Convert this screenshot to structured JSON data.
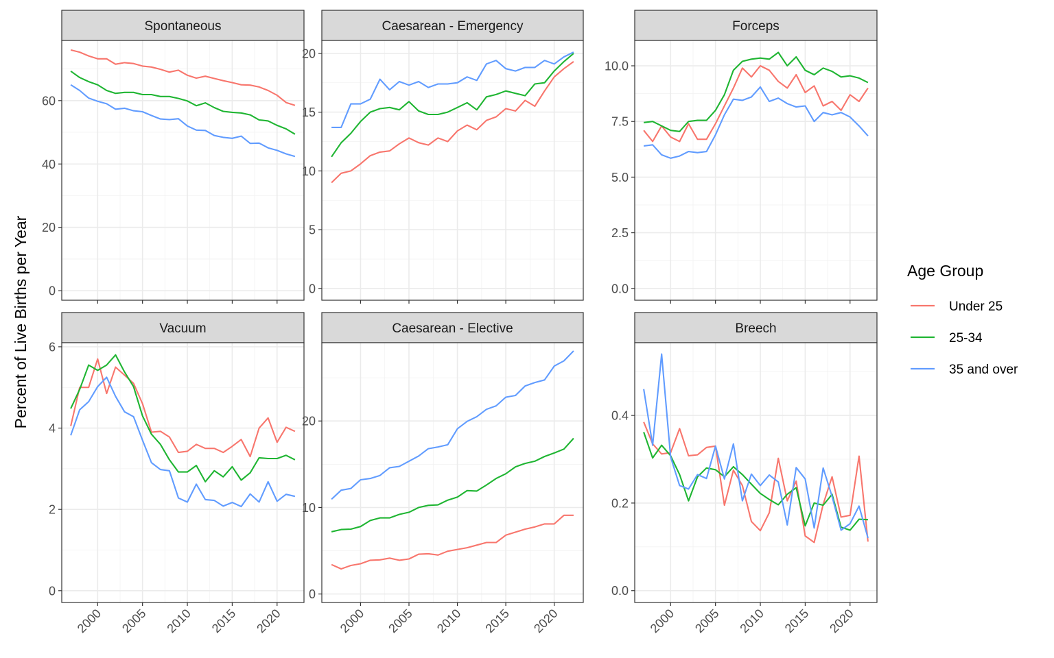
{
  "figure": {
    "ylabel": "Percent of Live Births per Year",
    "legend_title": "Age Group",
    "legend_placement": "right",
    "x_tick_labels": [
      "2000",
      "2005",
      "2010",
      "2015",
      "2020"
    ],
    "colors": {
      "Under 25": "#F8766D",
      "25-34": "#1FB532",
      "35 and over": "#619CFF"
    }
  },
  "legend": {
    "title": "Age Group",
    "items": [
      {
        "name": "Under 25",
        "color": "#F8766D"
      },
      {
        "name": "25-34",
        "color": "#1FB532"
      },
      {
        "name": "35 and over",
        "color": "#619CFF"
      }
    ]
  },
  "chart_data": [
    {
      "type": "line",
      "title": "Spontaneous",
      "xlim": [
        1996,
        2023
      ],
      "ylim": [
        -3,
        79
      ],
      "yticks": [
        0,
        20,
        40,
        60
      ],
      "ytick_labels": [
        "0",
        "20",
        "40",
        "60"
      ],
      "grid": true,
      "x": [
        1997,
        1998,
        1999,
        2000,
        2001,
        2002,
        2003,
        2004,
        2005,
        2006,
        2007,
        2008,
        2009,
        2010,
        2011,
        2012,
        2013,
        2014,
        2015,
        2016,
        2017,
        2018,
        2019,
        2020,
        2021,
        2022
      ],
      "series": [
        {
          "name": "Under 25",
          "values": [
            76.0,
            75.3,
            74.1,
            73.2,
            73.2,
            71.5,
            72.0,
            71.7,
            70.9,
            70.6,
            69.9,
            69.0,
            69.6,
            68.0,
            67.1,
            67.7,
            67.0,
            66.3,
            65.7,
            65.0,
            64.9,
            64.3,
            63.2,
            61.7,
            59.4,
            58.5
          ]
        },
        {
          "name": "25-34",
          "values": [
            69.3,
            67.3,
            66.0,
            65.0,
            63.2,
            62.3,
            62.6,
            62.6,
            61.9,
            61.9,
            61.3,
            61.3,
            60.7,
            59.9,
            58.4,
            59.3,
            57.8,
            56.6,
            56.3,
            56.1,
            55.5,
            53.9,
            53.6,
            52.2,
            51.1,
            49.4
          ]
        },
        {
          "name": "35 and over",
          "values": [
            65.0,
            63.2,
            60.8,
            59.8,
            59.0,
            57.3,
            57.6,
            56.8,
            56.5,
            55.3,
            54.2,
            54.0,
            54.3,
            52.0,
            50.7,
            50.6,
            49.0,
            48.4,
            48.1,
            48.8,
            46.5,
            46.6,
            45.1,
            44.3,
            43.2,
            42.4
          ]
        }
      ]
    },
    {
      "type": "line",
      "title": "Caesarean - Emergency",
      "xlim": [
        1996,
        2023
      ],
      "ylim": [
        -1,
        21.1
      ],
      "yticks": [
        0,
        5,
        10,
        15,
        20
      ],
      "ytick_labels": [
        "0",
        "5",
        "10",
        "15",
        "20"
      ],
      "grid": true,
      "x": [
        1997,
        1998,
        1999,
        2000,
        2001,
        2002,
        2003,
        2004,
        2005,
        2006,
        2007,
        2008,
        2009,
        2010,
        2011,
        2012,
        2013,
        2014,
        2015,
        2016,
        2017,
        2018,
        2019,
        2020,
        2021,
        2022
      ],
      "series": [
        {
          "name": "Under 25",
          "values": [
            9.0,
            9.8,
            10.0,
            10.6,
            11.3,
            11.6,
            11.7,
            12.3,
            12.8,
            12.4,
            12.2,
            12.8,
            12.5,
            13.4,
            13.9,
            13.5,
            14.3,
            14.6,
            15.3,
            15.1,
            16.0,
            15.5,
            16.8,
            18.0,
            18.7,
            19.3
          ]
        },
        {
          "name": "25-34",
          "values": [
            11.2,
            12.4,
            13.2,
            14.2,
            15.0,
            15.3,
            15.4,
            15.2,
            15.9,
            15.1,
            14.8,
            14.8,
            15.0,
            15.4,
            15.8,
            15.2,
            16.3,
            16.5,
            16.8,
            16.6,
            16.4,
            17.4,
            17.5,
            18.5,
            19.3,
            20.0
          ]
        },
        {
          "name": "35 and over",
          "values": [
            13.7,
            13.7,
            15.7,
            15.7,
            16.1,
            17.8,
            16.9,
            17.6,
            17.3,
            17.6,
            17.1,
            17.4,
            17.4,
            17.5,
            18.0,
            17.7,
            19.1,
            19.4,
            18.7,
            18.5,
            18.8,
            18.8,
            19.4,
            19.1,
            19.7,
            20.1
          ]
        }
      ]
    },
    {
      "type": "line",
      "title": "Forceps",
      "xlim": [
        1996,
        2023
      ],
      "ylim": [
        -0.53,
        11.14
      ],
      "yticks": [
        0,
        2.5,
        5,
        7.5,
        10
      ],
      "ytick_labels": [
        "0.0",
        "2.5",
        "5.0",
        "7.5",
        "10.0"
      ],
      "grid": true,
      "x": [
        1997,
        1998,
        1999,
        2000,
        2001,
        2002,
        2003,
        2004,
        2005,
        2006,
        2007,
        2008,
        2009,
        2010,
        2011,
        2012,
        2013,
        2014,
        2015,
        2016,
        2017,
        2018,
        2019,
        2020,
        2021,
        2022
      ],
      "series": [
        {
          "name": "Under 25",
          "values": [
            7.1,
            6.6,
            7.3,
            6.8,
            6.6,
            7.4,
            6.7,
            6.7,
            7.4,
            8.2,
            9.0,
            9.9,
            9.5,
            10.0,
            9.8,
            9.3,
            9.0,
            9.6,
            8.8,
            9.1,
            8.2,
            8.4,
            8.0,
            8.7,
            8.4,
            9.0
          ]
        },
        {
          "name": "25-34",
          "values": [
            7.45,
            7.5,
            7.3,
            7.1,
            7.05,
            7.5,
            7.55,
            7.55,
            8.0,
            8.7,
            9.8,
            10.2,
            10.3,
            10.35,
            10.3,
            10.6,
            10.0,
            10.4,
            9.8,
            9.6,
            9.9,
            9.75,
            9.5,
            9.55,
            9.45,
            9.25
          ]
        },
        {
          "name": "35 and over",
          "values": [
            6.4,
            6.45,
            6.0,
            5.85,
            5.95,
            6.15,
            6.1,
            6.15,
            6.9,
            7.8,
            8.5,
            8.45,
            8.6,
            9.05,
            8.4,
            8.55,
            8.3,
            8.15,
            8.2,
            7.5,
            7.9,
            7.8,
            7.9,
            7.7,
            7.3,
            6.85
          ]
        }
      ]
    },
    {
      "type": "line",
      "title": "Vacuum",
      "xlim": [
        1996,
        2023
      ],
      "ylim": [
        -0.29,
        6.1
      ],
      "yticks": [
        0,
        2,
        4,
        6
      ],
      "ytick_labels": [
        "0",
        "2",
        "4",
        "6"
      ],
      "grid": true,
      "x": [
        1997,
        1998,
        1999,
        2000,
        2001,
        2002,
        2003,
        2004,
        2005,
        2006,
        2007,
        2008,
        2009,
        2010,
        2011,
        2012,
        2013,
        2014,
        2015,
        2016,
        2017,
        2018,
        2019,
        2020,
        2021,
        2022
      ],
      "series": [
        {
          "name": "Under 25",
          "values": [
            4.05,
            5.0,
            5.0,
            5.7,
            4.85,
            5.5,
            5.3,
            5.1,
            4.6,
            3.9,
            3.92,
            3.78,
            3.4,
            3.43,
            3.6,
            3.5,
            3.5,
            3.4,
            3.55,
            3.72,
            3.3,
            4.0,
            4.25,
            3.65,
            4.02,
            3.92
          ]
        },
        {
          "name": "25-34",
          "values": [
            4.48,
            4.95,
            5.55,
            5.42,
            5.55,
            5.8,
            5.38,
            5.02,
            4.3,
            3.85,
            3.6,
            3.22,
            2.92,
            2.92,
            3.08,
            2.68,
            2.95,
            2.8,
            3.05,
            2.72,
            2.9,
            3.27,
            3.25,
            3.25,
            3.33,
            3.22
          ]
        },
        {
          "name": "35 and over",
          "values": [
            3.82,
            4.45,
            4.65,
            5.02,
            5.25,
            4.78,
            4.4,
            4.28,
            3.7,
            3.15,
            2.98,
            2.95,
            2.28,
            2.18,
            2.62,
            2.24,
            2.22,
            2.08,
            2.17,
            2.07,
            2.38,
            2.18,
            2.68,
            2.2,
            2.37,
            2.32
          ]
        }
      ]
    },
    {
      "type": "line",
      "title": "Caesarean - Elective",
      "xlim": [
        1996,
        2023
      ],
      "ylim": [
        -0.98,
        29.05
      ],
      "yticks": [
        0,
        10,
        20
      ],
      "ytick_labels": [
        "0",
        "10",
        "20"
      ],
      "grid": true,
      "x": [
        1997,
        1998,
        1999,
        2000,
        2001,
        2002,
        2003,
        2004,
        2005,
        2006,
        2007,
        2008,
        2009,
        2010,
        2011,
        2012,
        2013,
        2014,
        2015,
        2016,
        2017,
        2018,
        2019,
        2020,
        2021,
        2022
      ],
      "series": [
        {
          "name": "Under 25",
          "values": [
            3.4,
            2.9,
            3.3,
            3.5,
            3.9,
            3.95,
            4.15,
            3.9,
            4.05,
            4.6,
            4.65,
            4.5,
            4.95,
            5.15,
            5.35,
            5.65,
            5.95,
            5.95,
            6.8,
            7.15,
            7.5,
            7.75,
            8.1,
            8.1,
            9.1,
            9.1
          ]
        },
        {
          "name": "25-34",
          "values": [
            7.2,
            7.45,
            7.5,
            7.8,
            8.5,
            8.8,
            8.8,
            9.2,
            9.45,
            10.0,
            10.25,
            10.3,
            10.85,
            11.2,
            11.95,
            11.9,
            12.6,
            13.35,
            13.9,
            14.7,
            15.1,
            15.35,
            15.9,
            16.3,
            16.75,
            18.0
          ]
        },
        {
          "name": "35 and over",
          "values": [
            10.95,
            12.0,
            12.2,
            13.2,
            13.35,
            13.7,
            14.6,
            14.75,
            15.35,
            15.95,
            16.8,
            17.0,
            17.25,
            19.1,
            19.95,
            20.5,
            21.35,
            21.75,
            22.75,
            22.95,
            24.05,
            24.45,
            24.75,
            26.35,
            26.95,
            28.1
          ]
        }
      ]
    },
    {
      "type": "line",
      "title": "Breech",
      "xlim": [
        1996,
        2023
      ],
      "ylim": [
        -0.027,
        0.566
      ],
      "yticks": [
        0,
        0.2,
        0.4
      ],
      "ytick_labels": [
        "0.0",
        "0.2",
        "0.4"
      ],
      "grid": true,
      "x": [
        1997,
        1998,
        1999,
        2000,
        2001,
        2002,
        2003,
        2004,
        2005,
        2006,
        2007,
        2008,
        2009,
        2010,
        2011,
        2012,
        2013,
        2014,
        2015,
        2016,
        2017,
        2018,
        2019,
        2020,
        2021,
        2022
      ],
      "series": [
        {
          "name": "Under 25",
          "values": [
            0.385,
            0.335,
            0.312,
            0.315,
            0.37,
            0.308,
            0.31,
            0.327,
            0.33,
            0.195,
            0.275,
            0.24,
            0.158,
            0.137,
            0.178,
            0.302,
            0.205,
            0.25,
            0.125,
            0.11,
            0.197,
            0.26,
            0.168,
            0.172,
            0.307,
            0.112
          ]
        },
        {
          "name": "25-34",
          "values": [
            0.362,
            0.303,
            0.332,
            0.308,
            0.265,
            0.205,
            0.26,
            0.28,
            0.276,
            0.26,
            0.283,
            0.265,
            0.243,
            0.222,
            0.208,
            0.196,
            0.22,
            0.235,
            0.148,
            0.2,
            0.195,
            0.22,
            0.145,
            0.138,
            0.163,
            0.162
          ]
        },
        {
          "name": "35 and over",
          "values": [
            0.46,
            0.332,
            0.54,
            0.305,
            0.24,
            0.232,
            0.265,
            0.256,
            0.33,
            0.255,
            0.335,
            0.205,
            0.266,
            0.24,
            0.264,
            0.248,
            0.15,
            0.281,
            0.255,
            0.143,
            0.28,
            0.215,
            0.138,
            0.153,
            0.193,
            0.12
          ]
        }
      ]
    }
  ]
}
